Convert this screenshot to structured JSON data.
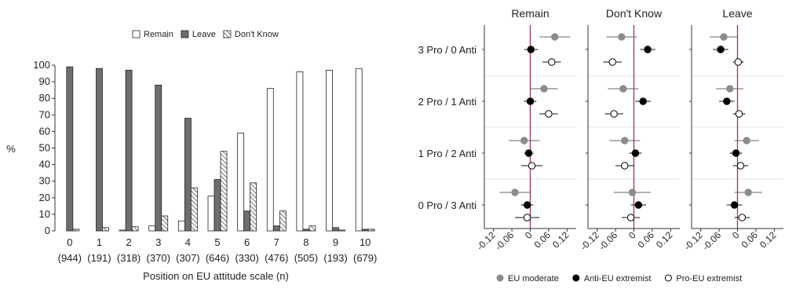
{
  "chart_data": [
    {
      "type": "bar",
      "ylabel": "%",
      "xlabel": "Position on EU attitude scale (n)",
      "ylim": [
        0,
        100
      ],
      "yticks": [
        0,
        10,
        20,
        30,
        40,
        50,
        60,
        70,
        80,
        90,
        100
      ],
      "categories": [
        "0",
        "1",
        "2",
        "3",
        "4",
        "5",
        "6",
        "7",
        "8",
        "9",
        "10"
      ],
      "category_n": [
        "(944)",
        "(191)",
        "(318)",
        "(370)",
        "(307)",
        "(646)",
        "(330)",
        "(476)",
        "(505)",
        "(193)",
        "(679)"
      ],
      "legend_position": "top",
      "series": [
        {
          "name": "Remain",
          "color": "#ffffff",
          "pattern": "solid-white",
          "values": [
            0,
            0,
            0.5,
            3,
            6,
            21,
            59,
            86,
            96,
            97,
            98
          ]
        },
        {
          "name": "Leave",
          "color": "#6e6e6e",
          "pattern": "solid-grey",
          "values": [
            99,
            98,
            97,
            88,
            68,
            31,
            12,
            3,
            1,
            2,
            1
          ]
        },
        {
          "name": "Don't Know",
          "color": "#ffffff",
          "pattern": "hatch",
          "values": [
            1,
            2,
            2.5,
            9,
            26,
            48,
            29,
            12,
            3,
            0.5,
            1
          ]
        }
      ]
    },
    {
      "type": "scatter",
      "subtype": "dot-and-whisker",
      "panels": [
        "Remain",
        "Don't Know",
        "Leave"
      ],
      "rows": [
        "3 Pro / 0 Anti",
        "2 Pro / 1 Anti",
        "1 Pro / 2 Anti",
        "0 Pro / 3 Anti"
      ],
      "xlim": [
        -0.15,
        0.15
      ],
      "xticks": [
        -0.12,
        -0.06,
        0,
        0.06,
        0.12
      ],
      "xtick_labels": [
        "-0.12",
        "-0.06",
        "0",
        "0.06",
        "0.12"
      ],
      "reference_line": {
        "x": 0,
        "color": "#a0306a"
      },
      "legend_position": "bottom",
      "series": [
        {
          "name": "EU moderate",
          "marker": "filled-grey",
          "color": "#8c8c8c",
          "points": [
            {
              "panel": "Remain",
              "row": "3 Pro / 0 Anti",
              "est": 0.08,
              "lo": 0.03,
              "hi": 0.13
            },
            {
              "panel": "Remain",
              "row": "2 Pro / 1 Anti",
              "est": 0.045,
              "lo": 0.0,
              "hi": 0.09
            },
            {
              "panel": "Remain",
              "row": "1 Pro / 2 Anti",
              "est": -0.02,
              "lo": -0.07,
              "hi": 0.03
            },
            {
              "panel": "Remain",
              "row": "0 Pro / 3 Anti",
              "est": -0.05,
              "lo": -0.1,
              "hi": 0.0
            },
            {
              "panel": "Don't Know",
              "row": "3 Pro / 0 Anti",
              "est": -0.04,
              "lo": -0.09,
              "hi": 0.01
            },
            {
              "panel": "Don't Know",
              "row": "2 Pro / 1 Anti",
              "est": -0.035,
              "lo": -0.085,
              "hi": 0.015
            },
            {
              "panel": "Don't Know",
              "row": "1 Pro / 2 Anti",
              "est": -0.03,
              "lo": -0.08,
              "hi": 0.02
            },
            {
              "panel": "Don't Know",
              "row": "0 Pro / 3 Anti",
              "est": -0.005,
              "lo": -0.065,
              "hi": 0.055
            },
            {
              "panel": "Leave",
              "row": "3 Pro / 0 Anti",
              "est": -0.045,
              "lo": -0.09,
              "hi": 0.0
            },
            {
              "panel": "Leave",
              "row": "2 Pro / 1 Anti",
              "est": -0.025,
              "lo": -0.07,
              "hi": 0.02
            },
            {
              "panel": "Leave",
              "row": "1 Pro / 2 Anti",
              "est": 0.03,
              "lo": -0.01,
              "hi": 0.07
            },
            {
              "panel": "Leave",
              "row": "0 Pro / 3 Anti",
              "est": 0.035,
              "lo": -0.01,
              "hi": 0.08
            }
          ]
        },
        {
          "name": "Anti-EU extremist",
          "marker": "filled-black",
          "color": "#000000",
          "points": [
            {
              "panel": "Remain",
              "row": "3 Pro / 0 Anti",
              "est": 0.002,
              "lo": -0.02,
              "hi": 0.025
            },
            {
              "panel": "Remain",
              "row": "2 Pro / 1 Anti",
              "est": 0.0,
              "lo": -0.02,
              "hi": 0.02
            },
            {
              "panel": "Remain",
              "row": "1 Pro / 2 Anti",
              "est": -0.005,
              "lo": -0.02,
              "hi": 0.01
            },
            {
              "panel": "Remain",
              "row": "0 Pro / 3 Anti",
              "est": -0.01,
              "lo": -0.03,
              "hi": 0.01
            },
            {
              "panel": "Don't Know",
              "row": "3 Pro / 0 Anti",
              "est": 0.045,
              "lo": 0.02,
              "hi": 0.07
            },
            {
              "panel": "Don't Know",
              "row": "2 Pro / 1 Anti",
              "est": 0.03,
              "lo": 0.005,
              "hi": 0.055
            },
            {
              "panel": "Don't Know",
              "row": "1 Pro / 2 Anti",
              "est": 0.005,
              "lo": -0.015,
              "hi": 0.025
            },
            {
              "panel": "Don't Know",
              "row": "0 Pro / 3 Anti",
              "est": 0.015,
              "lo": -0.01,
              "hi": 0.04
            },
            {
              "panel": "Leave",
              "row": "3 Pro / 0 Anti",
              "est": -0.055,
              "lo": -0.08,
              "hi": -0.03
            },
            {
              "panel": "Leave",
              "row": "2 Pro / 1 Anti",
              "est": -0.035,
              "lo": -0.06,
              "hi": -0.01
            },
            {
              "panel": "Leave",
              "row": "1 Pro / 2 Anti",
              "est": -0.005,
              "lo": -0.025,
              "hi": 0.015
            },
            {
              "panel": "Leave",
              "row": "0 Pro / 3 Anti",
              "est": -0.01,
              "lo": -0.035,
              "hi": 0.015
            }
          ]
        },
        {
          "name": "Pro-EU extremist",
          "marker": "hollow",
          "color": "#000000",
          "points": [
            {
              "panel": "Remain",
              "row": "3 Pro / 0 Anti",
              "est": 0.07,
              "lo": 0.04,
              "hi": 0.1
            },
            {
              "panel": "Remain",
              "row": "2 Pro / 1 Anti",
              "est": 0.06,
              "lo": 0.03,
              "hi": 0.09
            },
            {
              "panel": "Remain",
              "row": "1 Pro / 2 Anti",
              "est": 0.005,
              "lo": -0.03,
              "hi": 0.04
            },
            {
              "panel": "Remain",
              "row": "0 Pro / 3 Anti",
              "est": -0.01,
              "lo": -0.05,
              "hi": 0.03
            },
            {
              "panel": "Don't Know",
              "row": "3 Pro / 0 Anti",
              "est": -0.07,
              "lo": -0.1,
              "hi": -0.04
            },
            {
              "panel": "Don't Know",
              "row": "2 Pro / 1 Anti",
              "est": -0.065,
              "lo": -0.095,
              "hi": -0.035
            },
            {
              "panel": "Don't Know",
              "row": "1 Pro / 2 Anti",
              "est": -0.03,
              "lo": -0.06,
              "hi": 0.0
            },
            {
              "panel": "Don't Know",
              "row": "0 Pro / 3 Anti",
              "est": -0.01,
              "lo": -0.04,
              "hi": 0.02
            },
            {
              "panel": "Leave",
              "row": "3 Pro / 0 Anti",
              "est": 0.002,
              "lo": -0.015,
              "hi": 0.02
            },
            {
              "panel": "Leave",
              "row": "2 Pro / 1 Anti",
              "est": 0.005,
              "lo": -0.015,
              "hi": 0.025
            },
            {
              "panel": "Leave",
              "row": "1 Pro / 2 Anti",
              "est": 0.01,
              "lo": -0.015,
              "hi": 0.035
            },
            {
              "panel": "Leave",
              "row": "0 Pro / 3 Anti",
              "est": 0.015,
              "lo": -0.01,
              "hi": 0.04
            }
          ]
        }
      ]
    }
  ]
}
